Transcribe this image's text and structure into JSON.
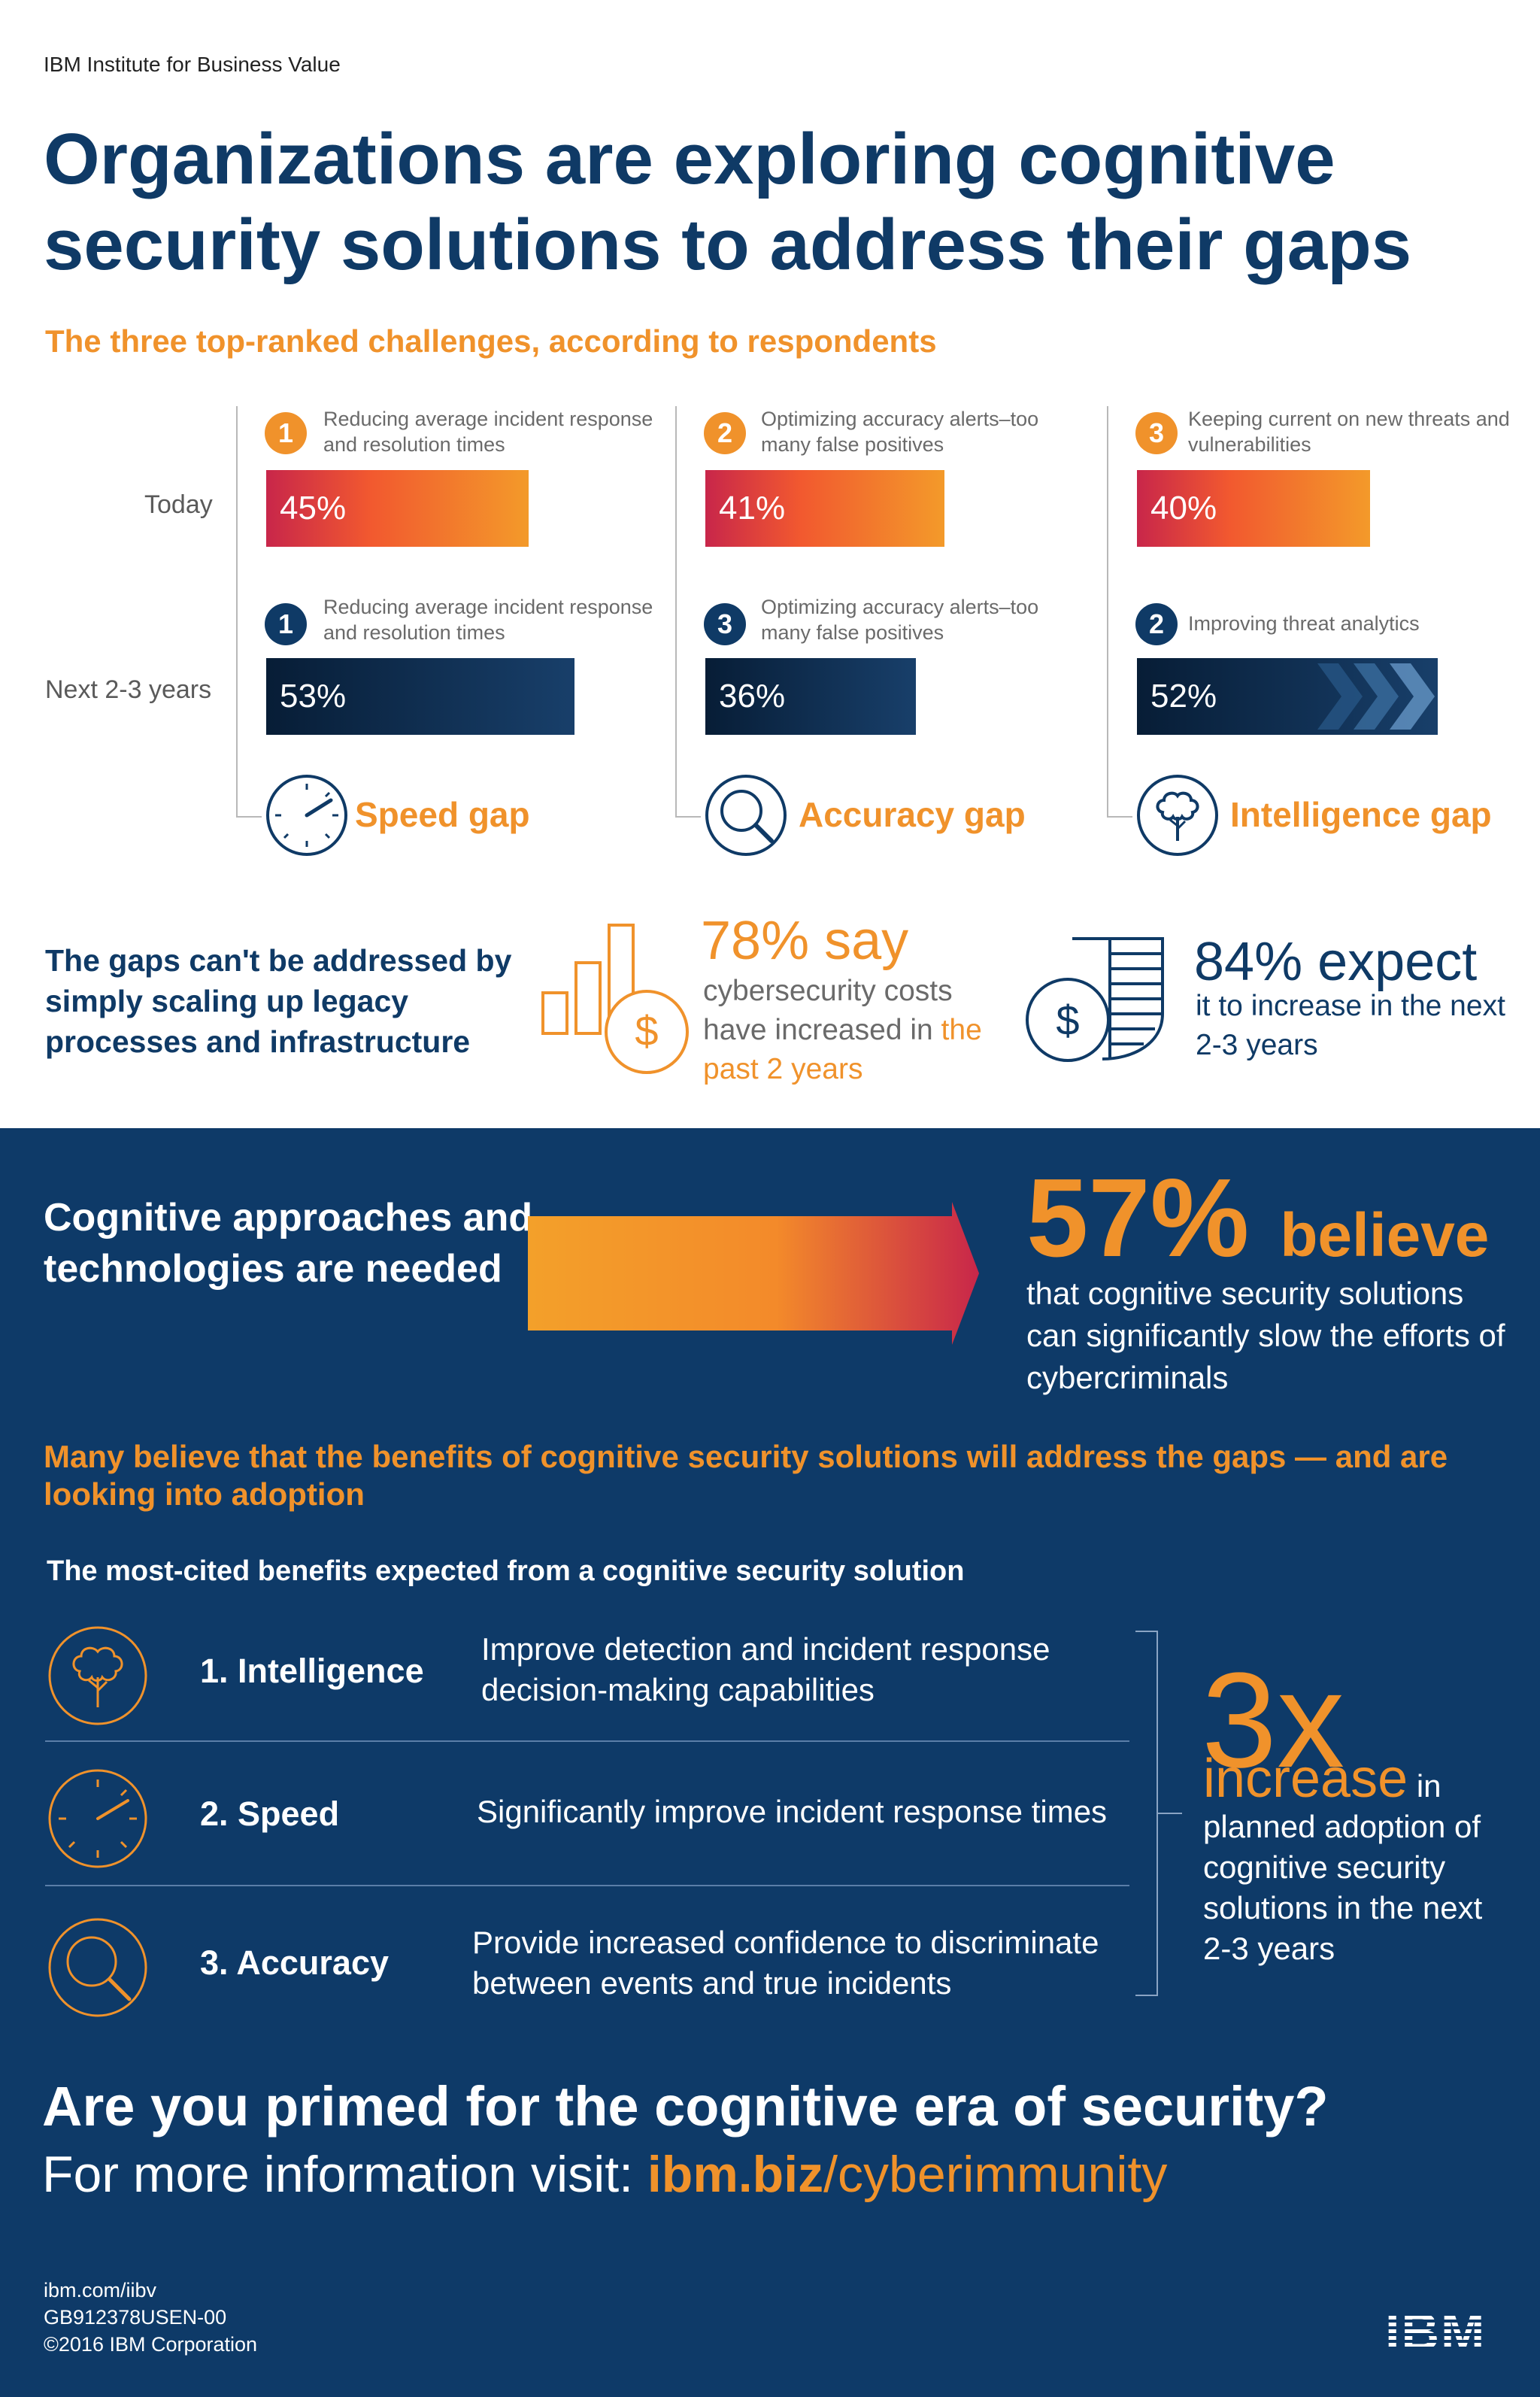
{
  "brand": "IBM Institute for Business Value",
  "headline": "Organizations are exploring cognitive security solutions to address their gaps",
  "subhead": "The three top-ranked challenges, according to respondents",
  "rows": {
    "today": "Today",
    "next": "Next 2-3 years"
  },
  "columns": [
    {
      "today": {
        "rank": "1",
        "label": "Reducing average incident response and resolution times",
        "value": "45%",
        "fraction": 0.45
      },
      "next": {
        "rank": "1",
        "label": "Reducing average incident response and resolution times",
        "value": "53%",
        "fraction": 0.53
      },
      "gap": "Speed gap",
      "icon": "speedometer-icon"
    },
    {
      "today": {
        "rank": "2",
        "label": "Optimizing accuracy alerts–too many false positives",
        "value": "41%",
        "fraction": 0.41
      },
      "next": {
        "rank": "3",
        "label": "Optimizing accuracy alerts–too many false positives",
        "value": "36%",
        "fraction": 0.36
      },
      "gap": "Accuracy gap",
      "icon": "magnifier-icon"
    },
    {
      "today": {
        "rank": "3",
        "label": "Keeping current on new threats and vulnerabilities",
        "value": "40%",
        "fraction": 0.4
      },
      "next": {
        "rank": "2",
        "label": "Improving threat analytics",
        "value": "52%",
        "fraction": 0.52
      },
      "gap": "Intelligence gap",
      "icon": "brain-tree-icon"
    }
  ],
  "scaling": {
    "text": "The gaps can't be addressed by simply scaling up legacy processes and infrastructure",
    "stat1_big": "78% say",
    "stat1_text": "cybersecurity costs have increased in",
    "stat1_highlight": "the past 2 years",
    "stat2_big": "84% expect",
    "stat2_text": "it to increase in the next 2-3 years"
  },
  "cognitive": {
    "text": "Cognitive approaches and technologies are needed",
    "big": "57%",
    "big_word": "believe",
    "desc": "that cognitive security solutions can significantly slow the efforts of cybercriminals"
  },
  "many": "Many believe that the benefits of cognitive security solutions will address the gaps — and are looking into adoption",
  "most_cited": "The most-cited benefits expected from a cognitive security solution",
  "benefits": [
    {
      "title": "1. Intelligence",
      "desc": "Improve detection and incident response decision-making capabilities",
      "icon": "brain-tree-icon"
    },
    {
      "title": "2. Speed",
      "desc": "Significantly improve incident response times",
      "icon": "speedometer-icon"
    },
    {
      "title": "3. Accuracy",
      "desc": "Provide increased confidence to discriminate between events and true incidents",
      "icon": "magnifier-icon"
    }
  ],
  "adoption": {
    "big": "3x",
    "word": "increase",
    "in": "in",
    "desc": "planned adoption of cognitive security solutions in the next 2-3 years"
  },
  "cta": {
    "question": "Are you primed for the cognitive era of security?",
    "visit_prefix": "For more information visit: ",
    "visit_bold": "ibm.biz",
    "visit_rest": "/cyberimmunity"
  },
  "footer": {
    "url": "ibm.com/iibv",
    "code": "GB912378USEN-00",
    "copyright": "©2016 IBM Corporation",
    "logo": "IBM"
  },
  "colors": {
    "navy": "#0f3a66",
    "orange": "#f0922b",
    "red": "#c8264a",
    "background_dark": "#0e3a68"
  }
}
